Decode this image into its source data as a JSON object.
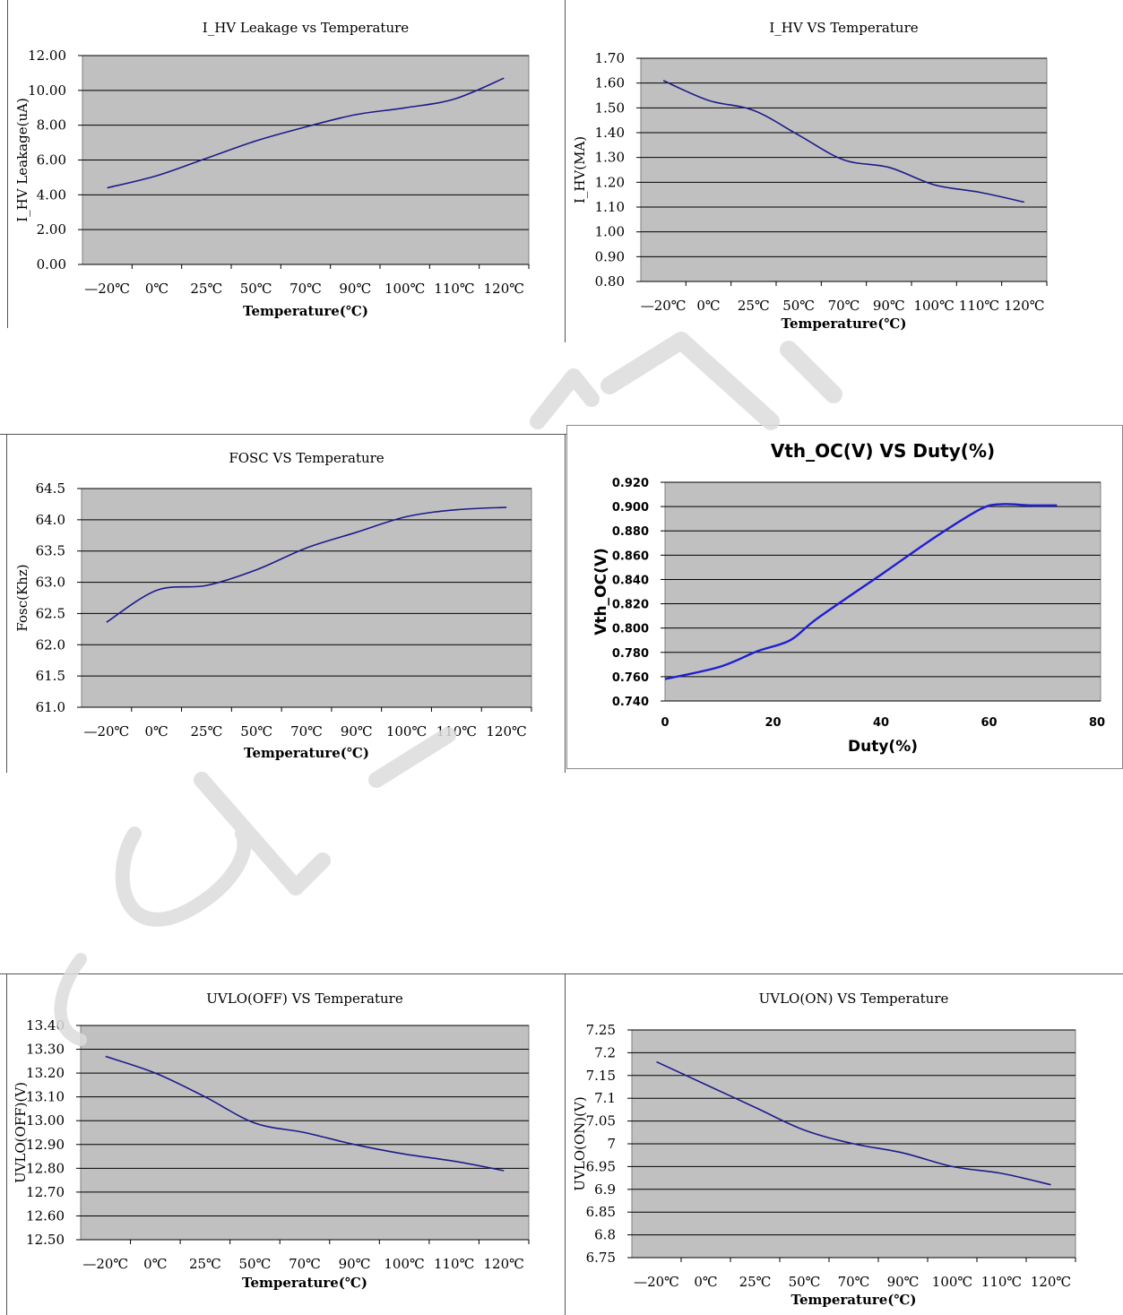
{
  "watermark_color": "#dcdcdc",
  "chart_data": [
    {
      "type": "line",
      "title": "I_HV Leakage vs Temperature",
      "xlabel": "Temperature(℃)",
      "ylabel": "I_HV Leakage(uA)",
      "categories": [
        "—20℃",
        "0℃",
        "25℃",
        "50℃",
        "70℃",
        "90℃",
        "100℃",
        "110℃",
        "120℃"
      ],
      "y_ticks": [
        "0.00",
        "2.00",
        "4.00",
        "6.00",
        "8.00",
        "10.00",
        "12.00"
      ],
      "ylim": [
        0,
        12
      ],
      "grid": true,
      "line_color": "#1c1c8c",
      "values": [
        4.4,
        5.1,
        6.1,
        7.1,
        7.9,
        8.6,
        9.0,
        9.5,
        10.7
      ]
    },
    {
      "type": "line",
      "title": "I_HV VS Temperature",
      "xlabel": "Temperature(℃)",
      "ylabel": "I_HV(MA)",
      "categories": [
        "—20℃",
        "0℃",
        "25℃",
        "50℃",
        "70℃",
        "90℃",
        "100℃",
        "110℃",
        "120℃"
      ],
      "y_ticks": [
        "0.80",
        "0.90",
        "1.00",
        "1.10",
        "1.20",
        "1.30",
        "1.40",
        "1.50",
        "1.60",
        "1.70"
      ],
      "ylim": [
        0.8,
        1.7
      ],
      "grid": true,
      "line_color": "#1c1c8c",
      "values": [
        1.61,
        1.53,
        1.49,
        1.39,
        1.29,
        1.26,
        1.19,
        1.16,
        1.12
      ]
    },
    {
      "type": "line",
      "title": "FOSC VS Temperature",
      "xlabel": "Temperature(℃)",
      "ylabel": "Fosc(Khz)",
      "categories": [
        "—20℃",
        "0℃",
        "25℃",
        "50℃",
        "70℃",
        "90℃",
        "100℃",
        "110℃",
        "120℃"
      ],
      "y_ticks": [
        "61.0",
        "61.5",
        "62.0",
        "62.5",
        "63.0",
        "63.5",
        "64.0",
        "64.5"
      ],
      "ylim": [
        61.0,
        64.5
      ],
      "grid": true,
      "line_color": "#1c1c8c",
      "values": [
        62.36,
        62.87,
        62.95,
        63.2,
        63.55,
        63.8,
        64.05,
        64.16,
        64.2
      ]
    },
    {
      "type": "line",
      "title": "Vth_OC(V) VS Duty(%)",
      "xlabel": "Duty(%)",
      "ylabel": "Vth_OC(V)",
      "x_ticks": [
        "0",
        "20",
        "40",
        "60",
        "80"
      ],
      "xlim": [
        0,
        80
      ],
      "y_ticks": [
        "0.740",
        "0.760",
        "0.780",
        "0.800",
        "0.820",
        "0.840",
        "0.860",
        "0.880",
        "0.900",
        "0.920"
      ],
      "ylim": [
        0.74,
        0.92
      ],
      "grid": true,
      "line_color": "#1f1fd0",
      "x": [
        0,
        10,
        17,
        23,
        28,
        40,
        50,
        58,
        62,
        67,
        72
      ],
      "values": [
        0.758,
        0.768,
        0.781,
        0.79,
        0.808,
        0.845,
        0.876,
        0.898,
        0.902,
        0.901,
        0.901
      ]
    },
    {
      "type": "line",
      "title": "UVLO(OFF) VS Temperature",
      "xlabel": "Temperature(℃)",
      "ylabel": "UVLO(OFF)(V)",
      "categories": [
        "—20℃",
        "0℃",
        "25℃",
        "50℃",
        "70℃",
        "90℃",
        "100℃",
        "110℃",
        "120℃"
      ],
      "y_ticks": [
        "12.50",
        "12.60",
        "12.70",
        "12.80",
        "12.90",
        "13.00",
        "13.10",
        "13.20",
        "13.30",
        "13.40"
      ],
      "ylim": [
        12.5,
        13.4
      ],
      "grid": true,
      "line_color": "#1c1c8c",
      "values": [
        13.27,
        13.2,
        13.1,
        12.99,
        12.95,
        12.9,
        12.86,
        12.83,
        12.79
      ]
    },
    {
      "type": "line",
      "title": "UVLO(ON) VS Temperature",
      "xlabel": "Temperature(℃)",
      "ylabel": "UVLO(ON)(V)",
      "categories": [
        "—20℃",
        "0℃",
        "25℃",
        "50℃",
        "70℃",
        "90℃",
        "100℃",
        "110℃",
        "120℃"
      ],
      "y_ticks": [
        "6.75",
        "6.8",
        "6.85",
        "6.9",
        "6.95",
        "7",
        "7.05",
        "7.1",
        "7.15",
        "7.2",
        "7.25"
      ],
      "ylim": [
        6.75,
        7.25
      ],
      "grid": true,
      "line_color": "#1c1c8c",
      "values": [
        7.18,
        7.13,
        7.08,
        7.03,
        7.0,
        6.98,
        6.95,
        6.935,
        6.91
      ]
    }
  ]
}
